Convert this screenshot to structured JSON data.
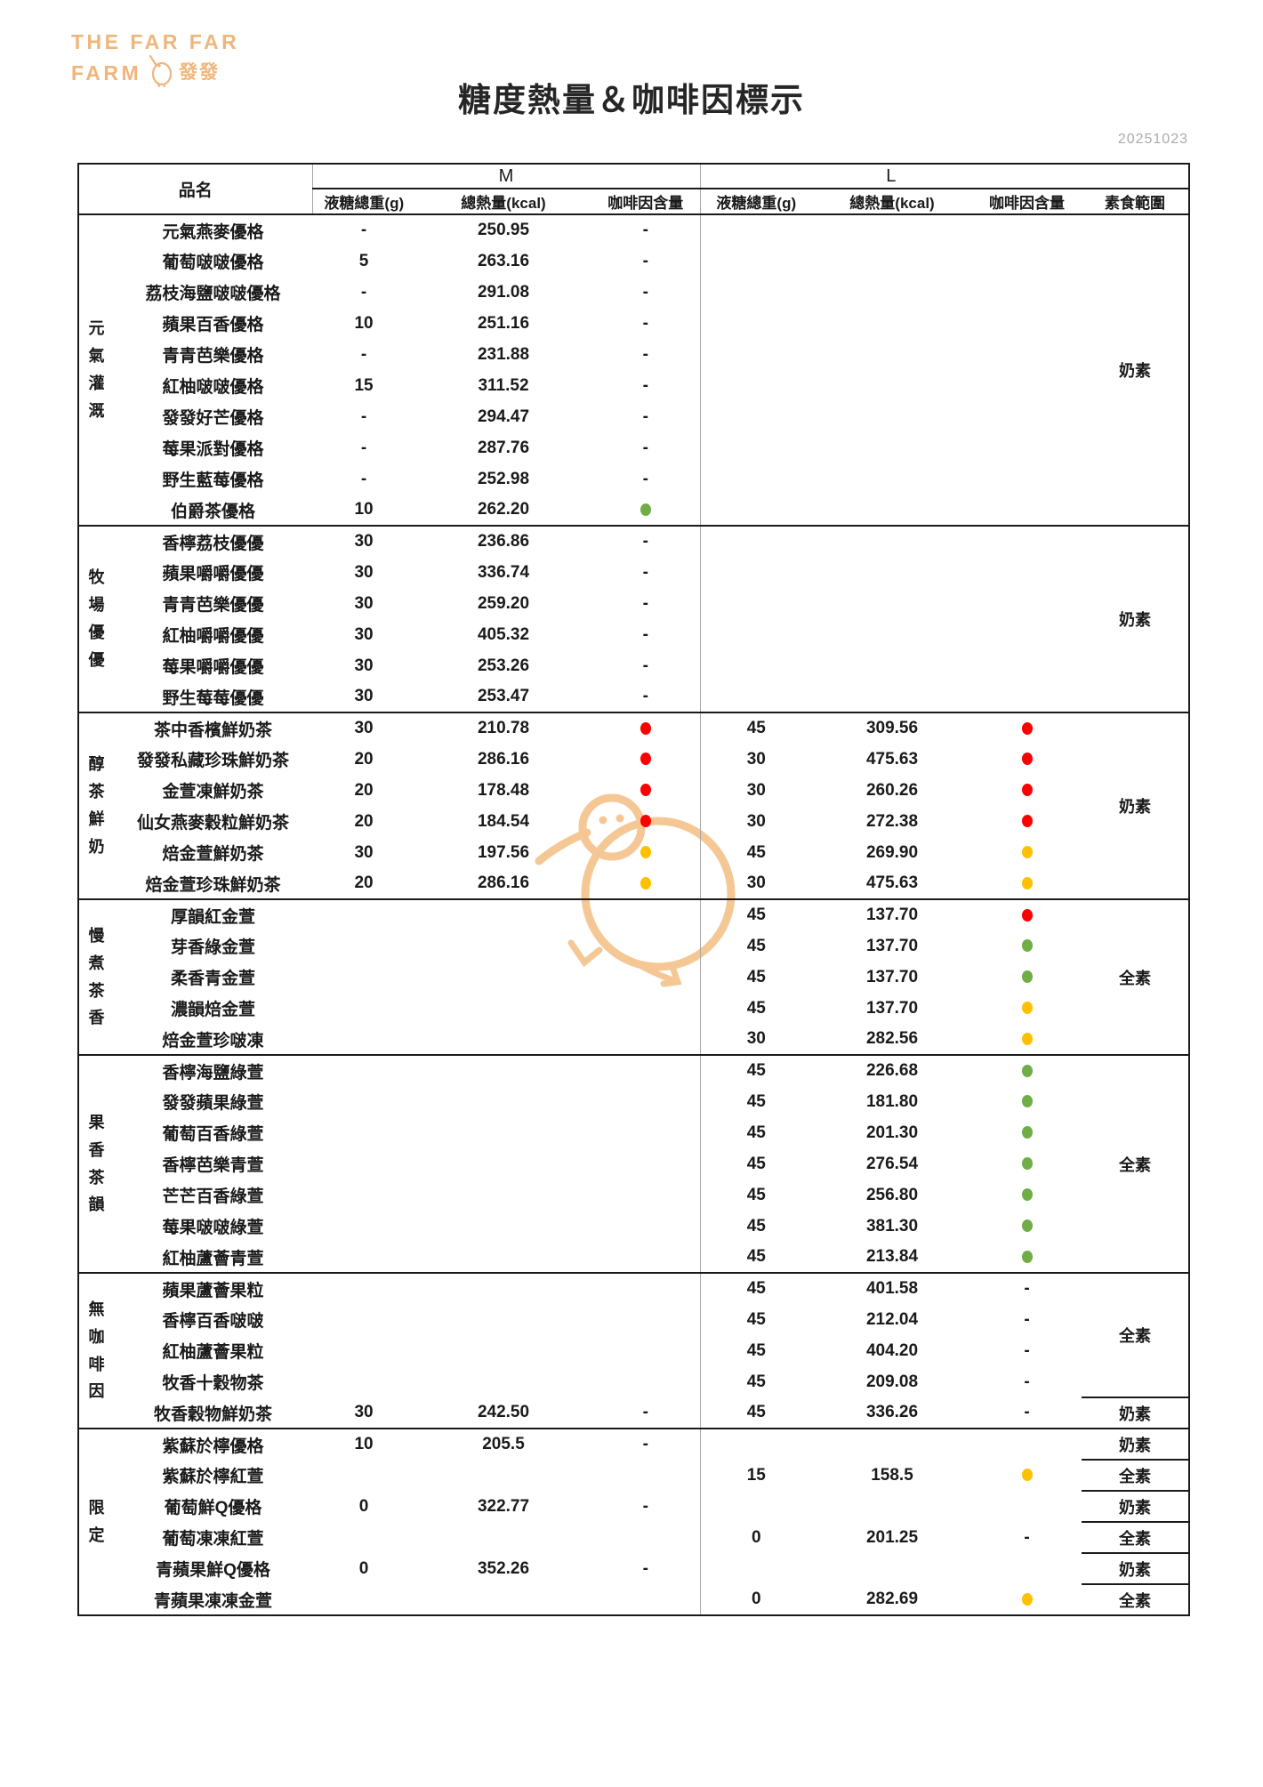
{
  "brand": {
    "line1": "THE FAR FAR",
    "line2": "FARM",
    "cn": "發發"
  },
  "title": "糖度熱量＆咖啡因標示",
  "date": "20251023",
  "header": {
    "product": "品名",
    "size_m": "M",
    "size_l": "L",
    "sugar": "液糖總重(g)",
    "kcal": "總熱量(kcal)",
    "caffeine": "咖啡因含量",
    "veg": "素食範圍"
  },
  "colors": {
    "brand_orange": "#EFB67C",
    "header_bg": "#F8CBAD",
    "caffeine_dots": {
      "red": "#FF0000",
      "yellow": "#FFC000",
      "green": "#70AD47"
    }
  },
  "sections": [
    {
      "group": "元氣灌溉",
      "veg_cells": [
        {
          "rows": 10,
          "label": "奶素"
        }
      ],
      "rows": [
        {
          "name": "元氣燕麥優格",
          "m": [
            "-",
            "250.95",
            "-"
          ],
          "l": [
            "",
            "",
            ""
          ]
        },
        {
          "name": "葡萄啵啵優格",
          "m": [
            "5",
            "263.16",
            "-"
          ],
          "l": [
            "",
            "",
            ""
          ]
        },
        {
          "name": "荔枝海鹽啵啵優格",
          "m": [
            "-",
            "291.08",
            "-"
          ],
          "l": [
            "",
            "",
            ""
          ]
        },
        {
          "name": "蘋果百香優格",
          "m": [
            "10",
            "251.16",
            "-"
          ],
          "l": [
            "",
            "",
            ""
          ]
        },
        {
          "name": "青青芭樂優格",
          "m": [
            "-",
            "231.88",
            "-"
          ],
          "l": [
            "",
            "",
            ""
          ]
        },
        {
          "name": "紅柚啵啵優格",
          "m": [
            "15",
            "311.52",
            "-"
          ],
          "l": [
            "",
            "",
            ""
          ]
        },
        {
          "name": "發發好芒優格",
          "m": [
            "-",
            "294.47",
            "-"
          ],
          "l": [
            "",
            "",
            ""
          ]
        },
        {
          "name": "莓果派對優格",
          "m": [
            "-",
            "287.76",
            "-"
          ],
          "l": [
            "",
            "",
            ""
          ]
        },
        {
          "name": "野生藍莓優格",
          "m": [
            "-",
            "252.98",
            "-"
          ],
          "l": [
            "",
            "",
            ""
          ]
        },
        {
          "name": "伯爵茶優格",
          "m": [
            "10",
            "262.20",
            "green"
          ],
          "l": [
            "",
            "",
            ""
          ]
        }
      ]
    },
    {
      "group": "牧場優優",
      "veg_cells": [
        {
          "rows": 6,
          "label": "奶素"
        }
      ],
      "rows": [
        {
          "name": "香檸荔枝優優",
          "m": [
            "30",
            "236.86",
            "-"
          ],
          "l": [
            "",
            "",
            ""
          ]
        },
        {
          "name": "蘋果嚼嚼優優",
          "m": [
            "30",
            "336.74",
            "-"
          ],
          "l": [
            "",
            "",
            ""
          ]
        },
        {
          "name": "青青芭樂優優",
          "m": [
            "30",
            "259.20",
            "-"
          ],
          "l": [
            "",
            "",
            ""
          ]
        },
        {
          "name": "紅柚嚼嚼優優",
          "m": [
            "30",
            "405.32",
            "-"
          ],
          "l": [
            "",
            "",
            ""
          ]
        },
        {
          "name": "莓果嚼嚼優優",
          "m": [
            "30",
            "253.26",
            "-"
          ],
          "l": [
            "",
            "",
            ""
          ]
        },
        {
          "name": "野生莓莓優優",
          "m": [
            "30",
            "253.47",
            "-"
          ],
          "l": [
            "",
            "",
            ""
          ]
        }
      ]
    },
    {
      "group": "醇茶鮮奶",
      "veg_cells": [
        {
          "rows": 6,
          "label": "奶素"
        }
      ],
      "rows": [
        {
          "name": "茶中香檳鮮奶茶",
          "m": [
            "30",
            "210.78",
            "red"
          ],
          "l": [
            "45",
            "309.56",
            "red"
          ]
        },
        {
          "name": "發發私藏珍珠鮮奶茶",
          "m": [
            "20",
            "286.16",
            "red"
          ],
          "l": [
            "30",
            "475.63",
            "red"
          ]
        },
        {
          "name": "金萱凍鮮奶茶",
          "m": [
            "20",
            "178.48",
            "red"
          ],
          "l": [
            "30",
            "260.26",
            "red"
          ]
        },
        {
          "name": "仙女燕麥穀粒鮮奶茶",
          "m": [
            "20",
            "184.54",
            "red"
          ],
          "l": [
            "30",
            "272.38",
            "red"
          ]
        },
        {
          "name": "焙金萱鮮奶茶",
          "m": [
            "30",
            "197.56",
            "yellow"
          ],
          "l": [
            "45",
            "269.90",
            "yellow"
          ]
        },
        {
          "name": "焙金萱珍珠鮮奶茶",
          "m": [
            "20",
            "286.16",
            "yellow"
          ],
          "l": [
            "30",
            "475.63",
            "yellow"
          ]
        }
      ]
    },
    {
      "group": "慢煮茶香",
      "veg_cells": [
        {
          "rows": 5,
          "label": "全素"
        }
      ],
      "rows": [
        {
          "name": "厚韻紅金萱",
          "m": [
            "",
            "",
            ""
          ],
          "l": [
            "45",
            "137.70",
            "red"
          ]
        },
        {
          "name": "芽香綠金萱",
          "m": [
            "",
            "",
            ""
          ],
          "l": [
            "45",
            "137.70",
            "green"
          ]
        },
        {
          "name": "柔香青金萱",
          "m": [
            "",
            "",
            ""
          ],
          "l": [
            "45",
            "137.70",
            "green"
          ]
        },
        {
          "name": "濃韻焙金萱",
          "m": [
            "",
            "",
            ""
          ],
          "l": [
            "45",
            "137.70",
            "yellow"
          ]
        },
        {
          "name": "焙金萱珍啵凍",
          "m": [
            "",
            "",
            ""
          ],
          "l": [
            "30",
            "282.56",
            "yellow"
          ]
        }
      ]
    },
    {
      "group": "果香茶韻",
      "veg_cells": [
        {
          "rows": 7,
          "label": "全素"
        }
      ],
      "rows": [
        {
          "name": "香檸海鹽綠萱",
          "m": [
            "",
            "",
            ""
          ],
          "l": [
            "45",
            "226.68",
            "green"
          ]
        },
        {
          "name": "發發蘋果綠萱",
          "m": [
            "",
            "",
            ""
          ],
          "l": [
            "45",
            "181.80",
            "green"
          ]
        },
        {
          "name": "葡萄百香綠萱",
          "m": [
            "",
            "",
            ""
          ],
          "l": [
            "45",
            "201.30",
            "green"
          ]
        },
        {
          "name": "香檸芭樂青萱",
          "m": [
            "",
            "",
            ""
          ],
          "l": [
            "45",
            "276.54",
            "green"
          ]
        },
        {
          "name": "芒芒百香綠萱",
          "m": [
            "",
            "",
            ""
          ],
          "l": [
            "45",
            "256.80",
            "green"
          ]
        },
        {
          "name": "莓果啵啵綠萱",
          "m": [
            "",
            "",
            ""
          ],
          "l": [
            "45",
            "381.30",
            "green"
          ]
        },
        {
          "name": "紅柚蘆薈青萱",
          "m": [
            "",
            "",
            ""
          ],
          "l": [
            "45",
            "213.84",
            "green"
          ]
        }
      ]
    },
    {
      "group": "無咖啡因",
      "veg_cells": [
        {
          "rows": 4,
          "label": "全素"
        },
        {
          "rows": 1,
          "label": "奶素"
        }
      ],
      "rows": [
        {
          "name": "蘋果蘆薈果粒",
          "m": [
            "",
            "",
            ""
          ],
          "l": [
            "45",
            "401.58",
            "-"
          ]
        },
        {
          "name": "香檸百香啵啵",
          "m": [
            "",
            "",
            ""
          ],
          "l": [
            "45",
            "212.04",
            "-"
          ]
        },
        {
          "name": "紅柚蘆薈果粒",
          "m": [
            "",
            "",
            ""
          ],
          "l": [
            "45",
            "404.20",
            "-"
          ]
        },
        {
          "name": "牧香十穀物茶",
          "m": [
            "",
            "",
            ""
          ],
          "l": [
            "45",
            "209.08",
            "-"
          ]
        },
        {
          "name": "牧香穀物鮮奶茶",
          "m": [
            "30",
            "242.50",
            "-"
          ],
          "l": [
            "45",
            "336.26",
            "-"
          ]
        }
      ]
    },
    {
      "group": "限定",
      "veg_cells": [
        {
          "rows": 1,
          "label": "奶素"
        },
        {
          "rows": 1,
          "label": "全素"
        },
        {
          "rows": 1,
          "label": "奶素"
        },
        {
          "rows": 1,
          "label": "全素"
        },
        {
          "rows": 1,
          "label": "奶素"
        },
        {
          "rows": 1,
          "label": "全素"
        }
      ],
      "rows": [
        {
          "name": "紫蘇於檸優格",
          "m": [
            "10",
            "205.5",
            "-"
          ],
          "l": [
            "",
            "",
            ""
          ]
        },
        {
          "name": "紫蘇於檸紅萱",
          "m": [
            "",
            "",
            ""
          ],
          "l": [
            "15",
            "158.5",
            "yellow"
          ]
        },
        {
          "name": "葡萄鮮Q優格",
          "m": [
            "0",
            "322.77",
            "-"
          ],
          "l": [
            "",
            "",
            ""
          ]
        },
        {
          "name": "葡萄凍凍紅萱",
          "m": [
            "",
            "",
            ""
          ],
          "l": [
            "0",
            "201.25",
            "-"
          ]
        },
        {
          "name": "青蘋果鮮Q優格",
          "m": [
            "0",
            "352.26",
            "-"
          ],
          "l": [
            "",
            "",
            ""
          ]
        },
        {
          "name": "青蘋果凍凍金萱",
          "m": [
            "",
            "",
            ""
          ],
          "l": [
            "0",
            "282.69",
            "yellow"
          ]
        }
      ]
    }
  ]
}
